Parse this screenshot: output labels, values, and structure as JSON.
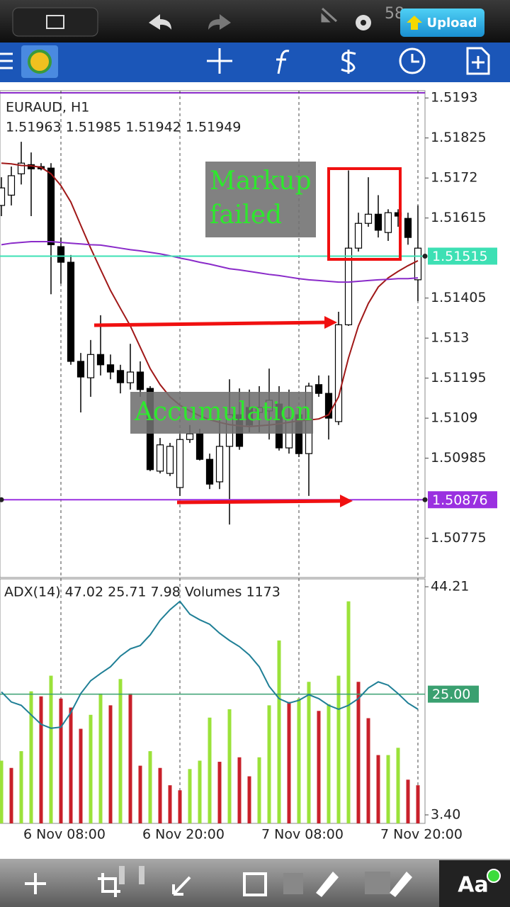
{
  "status_bar": {
    "battery": "58",
    "upload": "Upload"
  },
  "toolbar": {
    "font_button": "Aa"
  },
  "chart_data": [
    {
      "type": "candlestick",
      "title": "EURAUD, H1",
      "subtitle": "1.51963 1.51985 1.51942 1.51949",
      "categories": [
        null,
        null,
        null,
        null,
        null,
        null,
        "6 Nov 08:00",
        null,
        null,
        null,
        null,
        null,
        null,
        null,
        null,
        null,
        null,
        null,
        "6 Nov 20:00",
        null,
        null,
        null,
        null,
        null,
        null,
        null,
        null,
        null,
        null,
        null,
        "7 Nov 08:00",
        null,
        null,
        null,
        null,
        null,
        null,
        null,
        null,
        null,
        null,
        null,
        "7 Nov 20:00"
      ],
      "open": [
        1.51648,
        1.51675,
        1.51731,
        1.51755,
        1.5175,
        1.51746,
        1.5154,
        1.51499,
        1.51239,
        1.51196,
        1.51257,
        1.5123,
        1.51215,
        1.51183,
        1.51211,
        1.51168,
        1.50951,
        1.50945,
        1.50908,
        1.51034,
        1.51049,
        1.50982,
        1.50923,
        1.51016,
        1.51099,
        1.51118,
        1.51105,
        1.51109,
        1.51127,
        1.51012,
        1.51099,
        1.50997,
        1.51178,
        1.51155,
        1.51081,
        1.51335,
        1.51536,
        1.51601,
        1.51625,
        1.51577,
        1.51629,
        1.51614,
        1.51453
      ],
      "high": [
        1.51722,
        1.5175,
        1.51815,
        1.51787,
        1.51759,
        1.51759,
        1.51564,
        1.51518,
        1.51261,
        1.51295,
        1.5136,
        1.51257,
        1.5123,
        1.51285,
        1.51239,
        1.51174,
        1.51038,
        1.51025,
        1.51049,
        1.51072,
        1.51062,
        1.50997,
        1.5109,
        1.51192,
        1.51168,
        1.51165,
        1.51174,
        1.5122,
        1.51174,
        1.51165,
        1.51118,
        1.51183,
        1.51202,
        1.51202,
        1.51369,
        1.5174,
        1.51629,
        1.51722,
        1.51675,
        1.51638,
        1.51638,
        1.51629,
        1.51648
      ],
      "low": [
        1.5162,
        1.51648,
        1.51703,
        1.5162,
        1.5174,
        1.51415,
        1.51443,
        1.5123,
        1.51105,
        1.51146,
        1.51202,
        1.51192,
        1.51155,
        1.51165,
        1.51146,
        1.50951,
        1.50945,
        1.50938,
        1.50886,
        1.51025,
        1.50979,
        1.50904,
        1.50904,
        1.50811,
        1.51007,
        1.51053,
        1.51053,
        1.51034,
        1.51005,
        1.50997,
        1.50988,
        1.50886,
        1.51146,
        1.51034,
        1.51072,
        1.51332,
        1.51527,
        1.51592,
        1.51564,
        1.51555,
        1.51592,
        1.51545,
        1.51397
      ],
      "close": [
        1.51694,
        1.51726,
        1.51759,
        1.51744,
        1.51744,
        1.51545,
        1.51499,
        1.51239,
        1.51198,
        1.51257,
        1.5123,
        1.51211,
        1.51183,
        1.51211,
        1.51165,
        1.50955,
        1.5102,
        1.51016,
        1.51034,
        1.51049,
        1.50982,
        1.50917,
        1.51016,
        1.51099,
        1.51016,
        1.51072,
        1.51118,
        1.51137,
        1.51012,
        1.5109,
        1.50997,
        1.51174,
        1.51155,
        1.5109,
        1.51335,
        1.51536,
        1.51601,
        1.51625,
        1.51583,
        1.51629,
        1.5162,
        1.51564,
        1.51536
      ],
      "up_color": "#ffffff",
      "down_color": "#000000",
      "overlays": [
        {
          "color": "#a01818",
          "values": [
            1.51759,
            1.51757,
            1.51753,
            1.51752,
            1.51748,
            1.51731,
            1.517,
            1.51657,
            1.51596,
            1.51536,
            1.5148,
            1.51425,
            1.51378,
            1.51332,
            1.51276,
            1.5122,
            1.51178,
            1.51146,
            1.51124,
            1.51109,
            1.51096,
            1.51086,
            1.51079,
            1.51073,
            1.5107,
            1.51068,
            1.5107,
            1.51072,
            1.51075,
            1.51079,
            1.51083,
            1.51085,
            1.51088,
            1.51099,
            1.51146,
            1.51248,
            1.51332,
            1.51391,
            1.51434,
            1.51458,
            1.51475,
            1.5149,
            1.51503
          ]
        },
        {
          "color": "#8a2bc9",
          "values": [
            1.51545,
            1.51549,
            1.51551,
            1.51553,
            1.51553,
            1.51553,
            1.51551,
            1.51549,
            1.51547,
            1.51545,
            1.51544,
            1.5154,
            1.51536,
            1.51532,
            1.51529,
            1.51525,
            1.51521,
            1.51516,
            1.5151,
            1.51505,
            1.51499,
            1.51494,
            1.51488,
            1.51482,
            1.51479,
            1.51475,
            1.51471,
            1.51467,
            1.51464,
            1.5146,
            1.51456,
            1.51453,
            1.51451,
            1.51449,
            1.51447,
            1.51447,
            1.51449,
            1.51451,
            1.51453,
            1.51454,
            1.51456,
            1.51456,
            1.51458
          ]
        }
      ],
      "levels": [
        {
          "value": 1.51515,
          "color": "#3de0b4"
        },
        {
          "value": 1.50876,
          "color": "#9a30e0"
        }
      ],
      "annotations": [
        [
          "Markup",
          "failed"
        ],
        [
          "Accumulation"
        ]
      ],
      "ylim": [
        1.50672,
        1.51949
      ],
      "yticks": [
        1.5193,
        1.51825,
        1.5172,
        1.51615,
        1.51405,
        1.513,
        1.51195,
        1.5109,
        1.50985,
        1.50775
      ],
      "grid": true
    },
    {
      "type": "combo",
      "title": "ADX(14) 47.02 25.71 7.98 Volumes 1173",
      "bars": {
        "up_color": "#9be23a",
        "down_color": "#c8202a",
        "values": [
          13.1,
          11.8,
          14.8,
          25.5,
          24.6,
          28.3,
          24.2,
          22.6,
          18.8,
          21.3,
          25.1,
          23.0,
          27.7,
          25.1,
          12.2,
          14.8,
          11.8,
          8.7,
          7.8,
          11.6,
          13.1,
          20.8,
          12.9,
          22.3,
          13.7,
          10.3,
          13.7,
          23.0,
          34.6,
          23.6,
          24.2,
          27.2,
          22.0,
          23.2,
          28.3,
          41.6,
          27.2,
          20.7,
          14.1,
          14.1,
          15.4,
          9.7,
          8.7
        ]
      },
      "line": {
        "color": "#1f7f96",
        "values": [
          25.4,
          23.6,
          23.0,
          21.3,
          19.6,
          18.9,
          19.1,
          21.7,
          25.1,
          27.4,
          28.7,
          29.9,
          31.8,
          33.1,
          33.7,
          35.6,
          38.2,
          40.1,
          41.6,
          39.3,
          38.3,
          37.5,
          35.9,
          34.6,
          33.5,
          32.0,
          29.9,
          26.4,
          24.2,
          23.4,
          23.9,
          24.9,
          24.2,
          23.0,
          22.3,
          23.0,
          24.2,
          26.1,
          27.2,
          26.6,
          25.1,
          23.4,
          22.3
        ]
      },
      "levels": [
        {
          "value": 25,
          "label": "25.00",
          "color": "#3aa070"
        }
      ],
      "ylim": [
        1.88,
        45.61
      ],
      "yticks": [
        44.21,
        {
          "value": 3.4,
          "label": "3.40"
        }
      ]
    }
  ]
}
